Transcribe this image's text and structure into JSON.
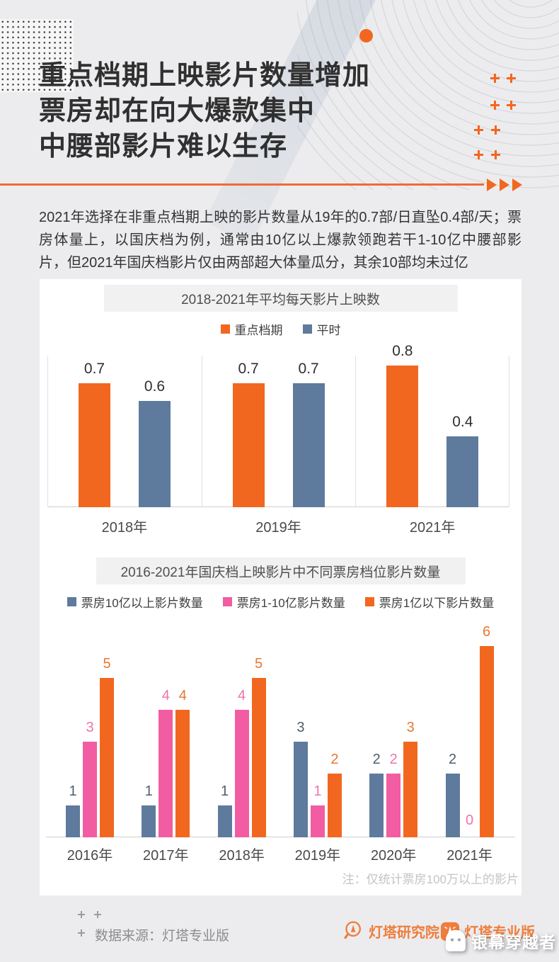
{
  "colors": {
    "accent_orange": "#f2671f",
    "steel_blue": "#5e7a9d",
    "pink": "#f25ca2",
    "logo_orange": "#ef7d3c"
  },
  "header": {
    "title_lines": [
      "重点档期上映影片数量增加",
      "票房却在向大爆款集中",
      "中腰部影片难以生存"
    ]
  },
  "intro": {
    "text": "2021年选择在非重点档期上映的影片数量从19年的0.7部/日直坠0.4部/天；票房体量上，以国庆档为例，通常由10亿以上爆款领跑若干1-10亿中腰部影片，但2021年国庆档影片仅由两部超大体量瓜分，其余10部均未过亿"
  },
  "chart_data": [
    {
      "type": "bar",
      "title": "2018-2021年平均每天影片上映数",
      "categories": [
        "2018年",
        "2019年",
        "2021年"
      ],
      "series": [
        {
          "name": "重点档期",
          "color": "#f2671f",
          "values": [
            0.7,
            0.7,
            0.8
          ]
        },
        {
          "name": "平时",
          "color": "#5e7a9d",
          "values": [
            0.6,
            0.7,
            0.4
          ]
        }
      ],
      "ylim": [
        0,
        0.85
      ],
      "value_labels": true,
      "legend_position": "top",
      "grid": "vertical-separators"
    },
    {
      "type": "bar",
      "title": "2016-2021年国庆档上映影片中不同票房档位影片数量",
      "categories": [
        "2016年",
        "2017年",
        "2018年",
        "2019年",
        "2020年",
        "2021年"
      ],
      "series": [
        {
          "name": "票房10亿以上影片数量",
          "color": "#5e7a9d",
          "label_color": "#525d6b",
          "values": [
            1,
            1,
            1,
            3,
            2,
            2
          ]
        },
        {
          "name": "票房1-10亿影片数量",
          "color": "#f25ca2",
          "label_color": "#ee74ab",
          "values": [
            3,
            4,
            4,
            1,
            2,
            0
          ]
        },
        {
          "name": "票房1亿以下影片数量",
          "color": "#f2671f",
          "label_color": "#e8772f",
          "values": [
            5,
            4,
            5,
            2,
            3,
            6
          ]
        }
      ],
      "ylim": [
        0,
        6.5
      ],
      "value_labels": true,
      "legend_position": "top",
      "note": "注：仅统计票房100万以上的影片"
    }
  ],
  "footer": {
    "source": "数据来源：灯塔专业版",
    "logo_research": "灯塔研究院",
    "logo_pro": "灯塔专业版",
    "watermark": "银幕穿越者"
  }
}
